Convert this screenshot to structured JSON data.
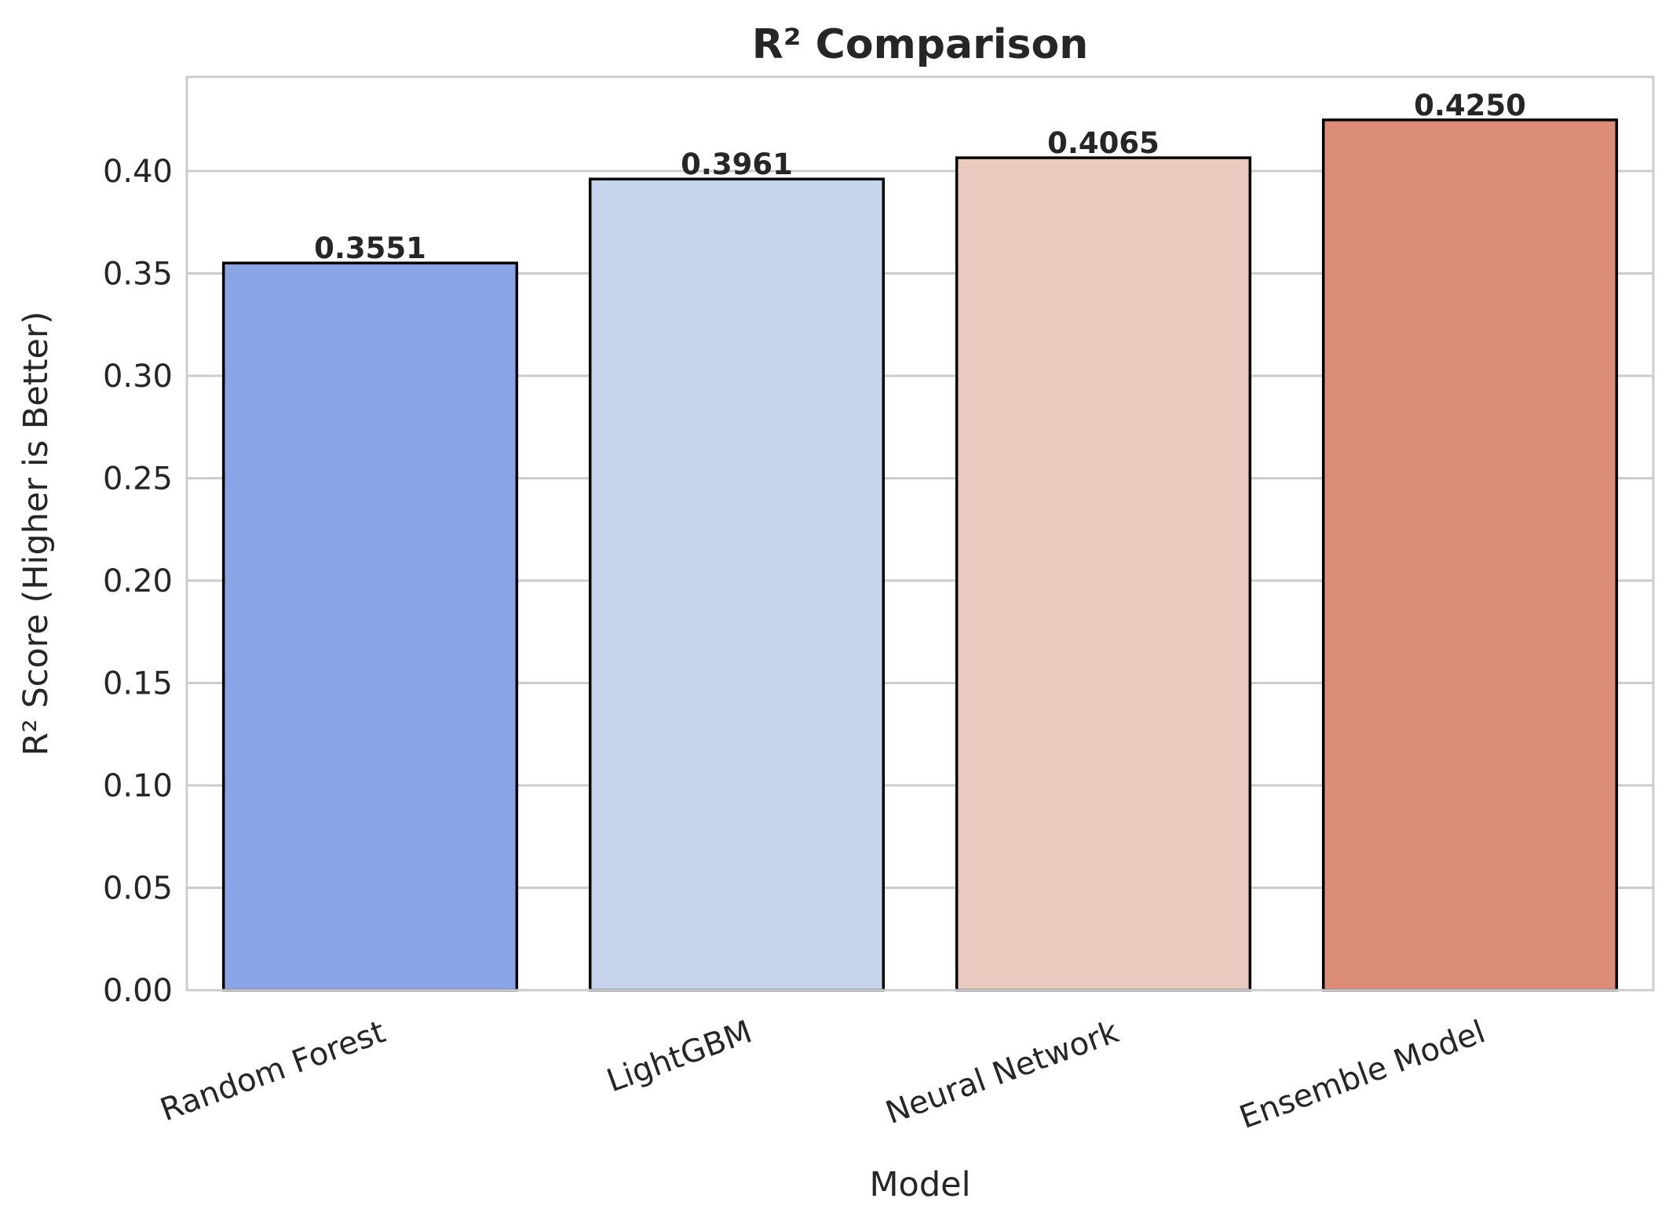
{
  "chart_data": {
    "type": "bar",
    "title": "R² Comparison",
    "xlabel": "Model",
    "ylabel": "R² Score (Higher is Better)",
    "categories": [
      "Random Forest",
      "LightGBM",
      "Neural Network",
      "Ensemble Model"
    ],
    "values": [
      0.3551,
      0.3961,
      0.4065,
      0.425
    ],
    "value_labels": [
      "0.3551",
      "0.3961",
      "0.4065",
      "0.4250"
    ],
    "colors": [
      "#8aa5e6",
      "#c7d4ee",
      "#e9ccbf",
      "#db8d77"
    ],
    "ylim": [
      0,
      0.446
    ],
    "yticks": [
      0.0,
      0.05,
      0.1,
      0.15,
      0.2,
      0.25,
      0.3,
      0.35,
      0.4
    ],
    "ytick_labels": [
      "0.00",
      "0.05",
      "0.10",
      "0.15",
      "0.20",
      "0.25",
      "0.30",
      "0.35",
      "0.40"
    ],
    "grid": true,
    "grid_axis": "y",
    "legend": "none"
  }
}
